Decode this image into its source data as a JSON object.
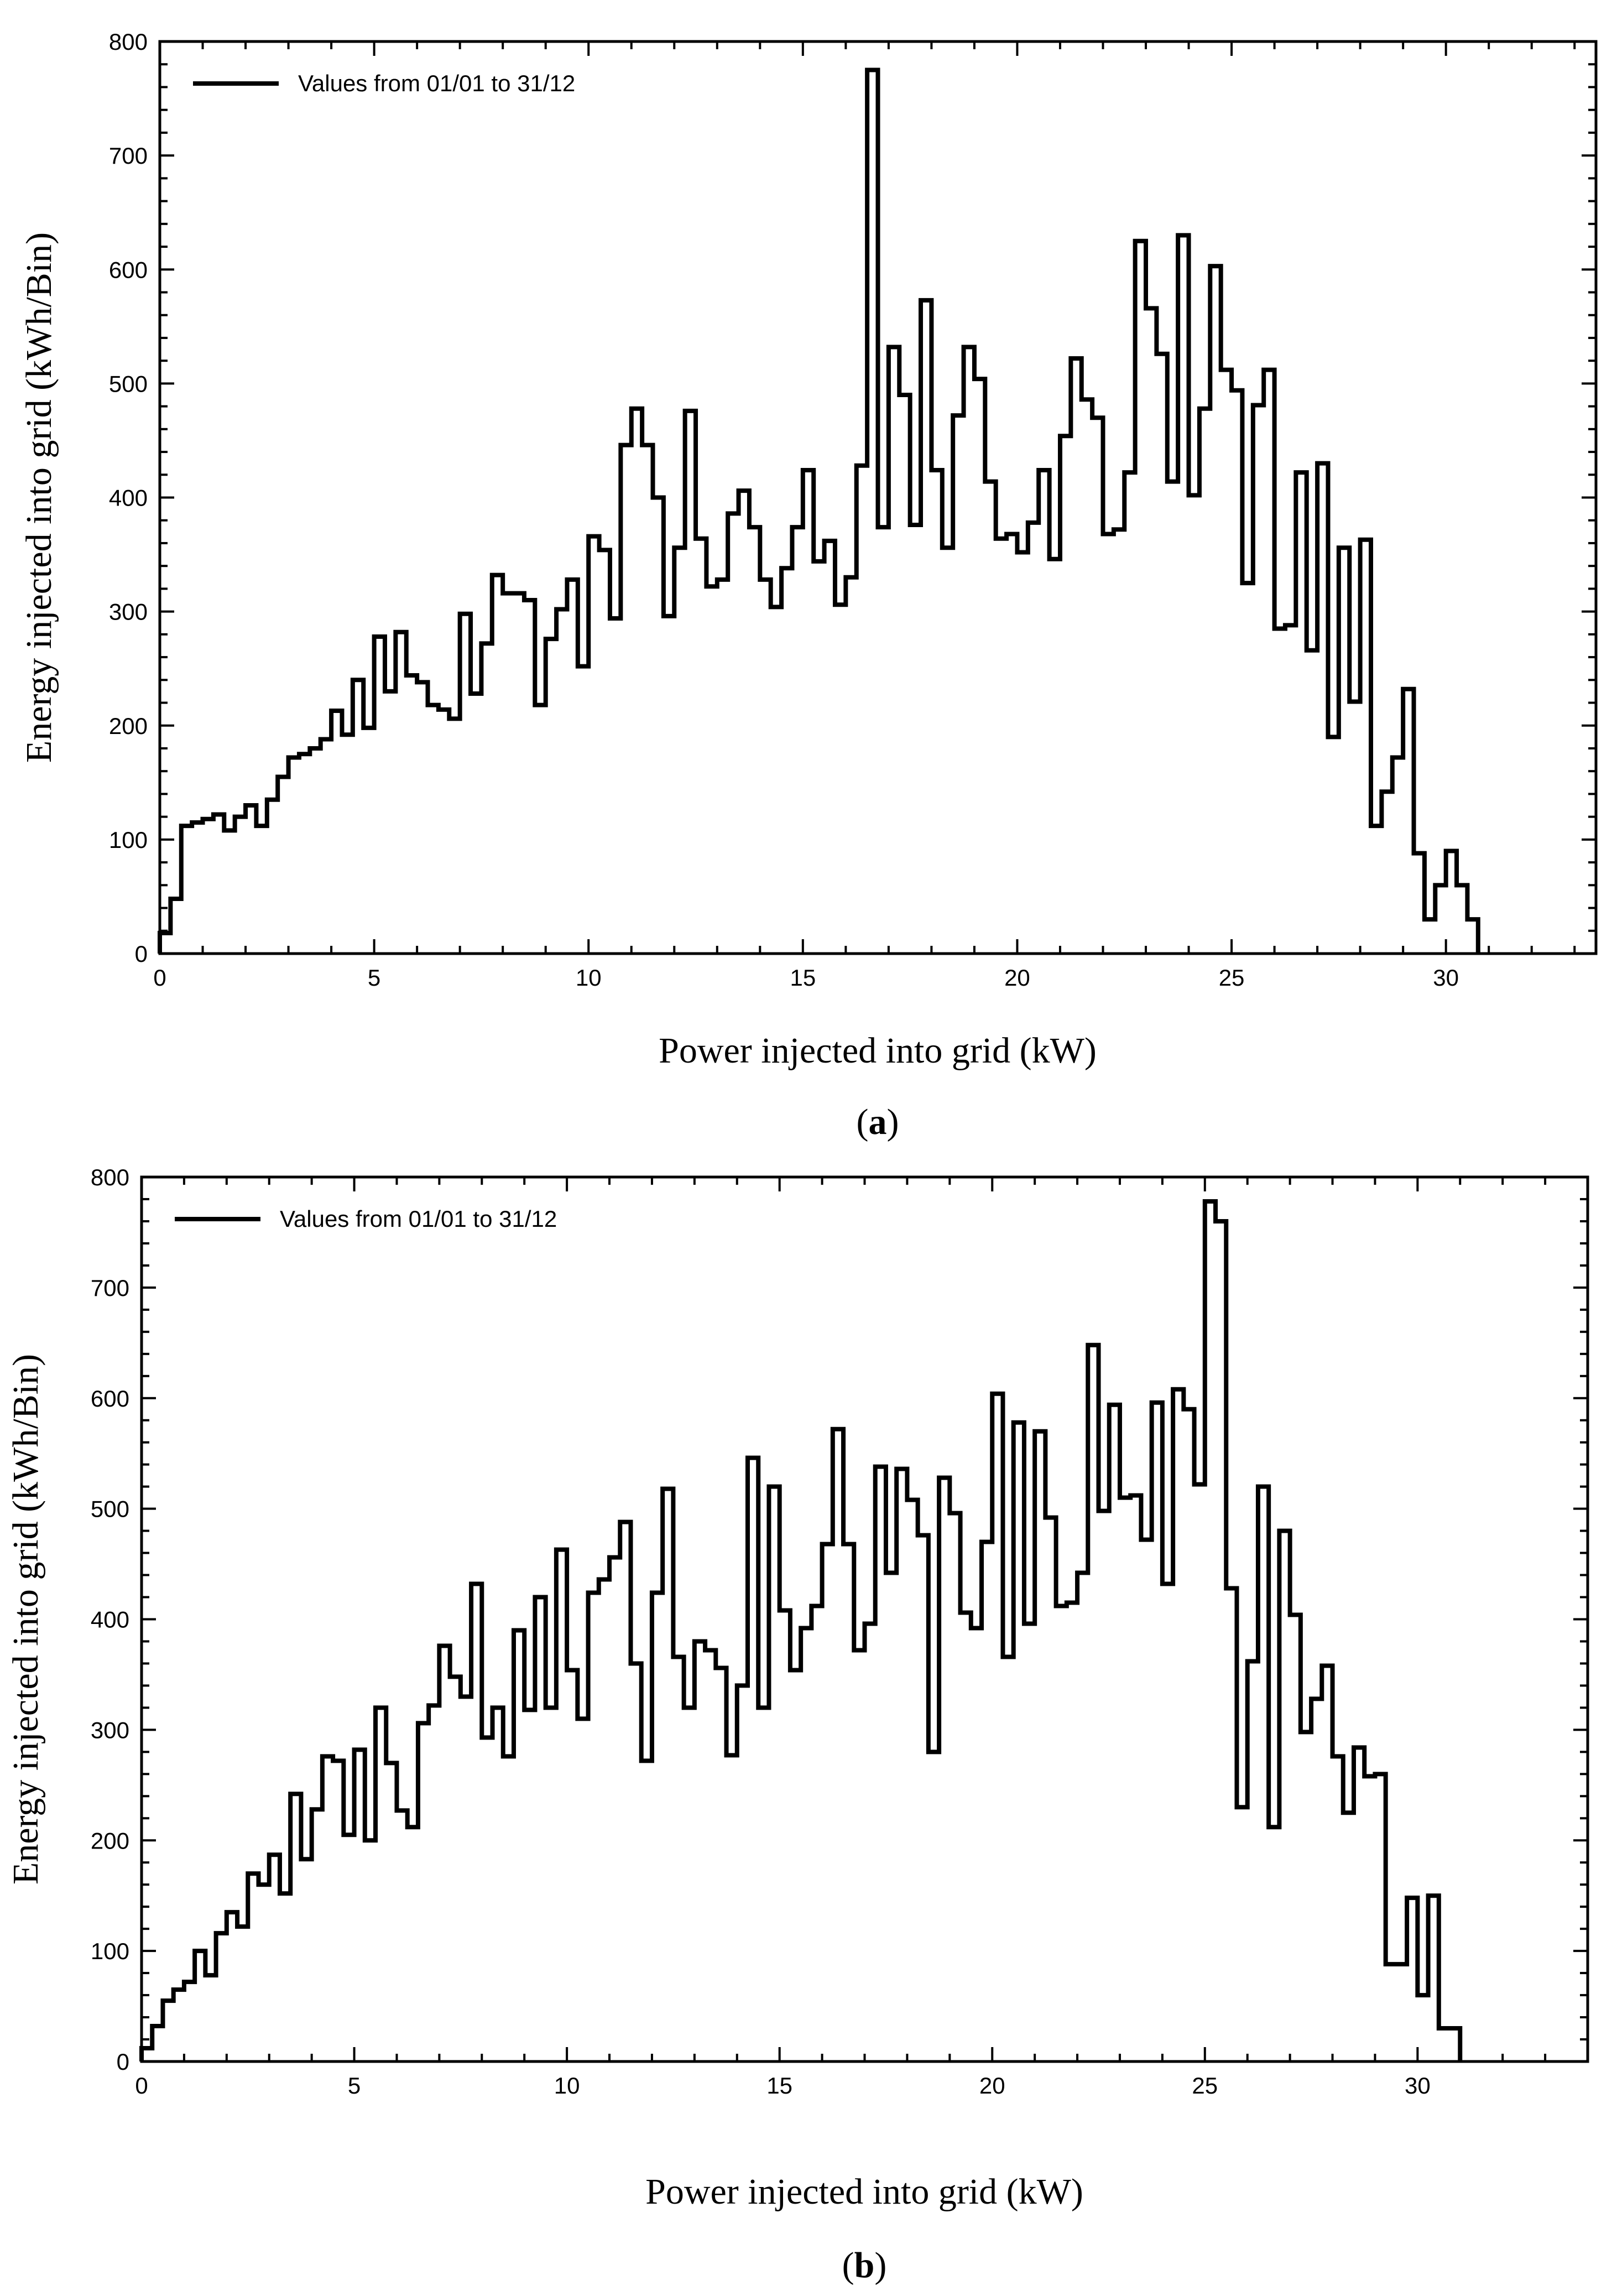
{
  "chart_data": [
    {
      "type": "line",
      "panel_label": "a",
      "title": "",
      "xlabel": "Power injected into grid (kW)",
      "ylabel": "Energy injected into grid (kWh/Bin)",
      "xlim": [
        0,
        33.5
      ],
      "ylim": [
        0,
        800
      ],
      "x_ticks": [
        0,
        5,
        10,
        15,
        20,
        25,
        30
      ],
      "y_ticks": [
        0,
        100,
        200,
        300,
        400,
        500,
        600,
        700,
        800
      ],
      "grid": false,
      "legend_position": "top-left",
      "series": [
        {
          "name": "Values from 01/01 to 31/12",
          "bin_width": 0.25,
          "values": [
            18,
            48,
            112,
            115,
            118,
            122,
            108,
            120,
            130,
            112,
            135,
            155,
            172,
            175,
            180,
            188,
            213,
            192,
            240,
            198,
            278,
            230,
            282,
            244,
            238,
            218,
            214,
            206,
            298,
            228,
            272,
            332,
            316,
            316,
            310,
            218,
            276,
            302,
            328,
            252,
            366,
            354,
            294,
            446,
            478,
            446,
            400,
            296,
            356,
            476,
            364,
            322,
            328,
            386,
            406,
            374,
            328,
            304,
            338,
            374,
            424,
            344,
            362,
            306,
            330,
            428,
            775,
            374,
            532,
            490,
            376,
            573,
            424,
            356,
            472,
            532,
            504,
            414,
            364,
            368,
            352,
            378,
            424,
            346,
            454,
            522,
            486,
            470,
            368,
            372,
            422,
            625,
            566,
            526,
            414,
            630,
            402,
            478,
            603,
            512,
            494,
            325,
            481,
            512,
            285,
            288,
            422,
            266,
            430,
            190,
            356,
            221,
            363,
            112,
            142,
            172,
            232,
            88,
            30,
            60,
            90,
            60,
            30
          ]
        }
      ]
    },
    {
      "type": "line",
      "panel_label": "b",
      "title": "",
      "xlabel": "Power injected into grid (kW)",
      "ylabel": "Energy injected into grid (kWh/Bin)",
      "xlim": [
        0,
        34
      ],
      "ylim": [
        0,
        800
      ],
      "x_ticks": [
        0,
        5,
        10,
        15,
        20,
        25,
        30
      ],
      "y_ticks": [
        0,
        100,
        200,
        300,
        400,
        500,
        600,
        700,
        800
      ],
      "grid": false,
      "legend_position": "top-left",
      "series": [
        {
          "name": "Values from 01/01 to 31/12",
          "bin_width": 0.25,
          "values": [
            12,
            32,
            55,
            65,
            72,
            100,
            78,
            116,
            135,
            122,
            170,
            160,
            187,
            152,
            242,
            183,
            228,
            276,
            272,
            205,
            282,
            200,
            320,
            270,
            227,
            212,
            306,
            322,
            376,
            348,
            330,
            432,
            293,
            320,
            276,
            390,
            318,
            420,
            320,
            463,
            354,
            310,
            424,
            436,
            456,
            488,
            360,
            272,
            424,
            518,
            366,
            320,
            380,
            372,
            356,
            277,
            340,
            546,
            320,
            520,
            408,
            354,
            392,
            412,
            468,
            572,
            468,
            372,
            396,
            538,
            442,
            536,
            508,
            476,
            280,
            528,
            496,
            406,
            392,
            470,
            604,
            366,
            578,
            396,
            570,
            492,
            412,
            415,
            442,
            648,
            498,
            594,
            510,
            512,
            472,
            596,
            432,
            608,
            590,
            522,
            778,
            760,
            428,
            230,
            362,
            520,
            212,
            480,
            404,
            298,
            328,
            358,
            276,
            225,
            284,
            258,
            260,
            88,
            88,
            148,
            60,
            150,
            30,
            30
          ]
        }
      ]
    }
  ]
}
